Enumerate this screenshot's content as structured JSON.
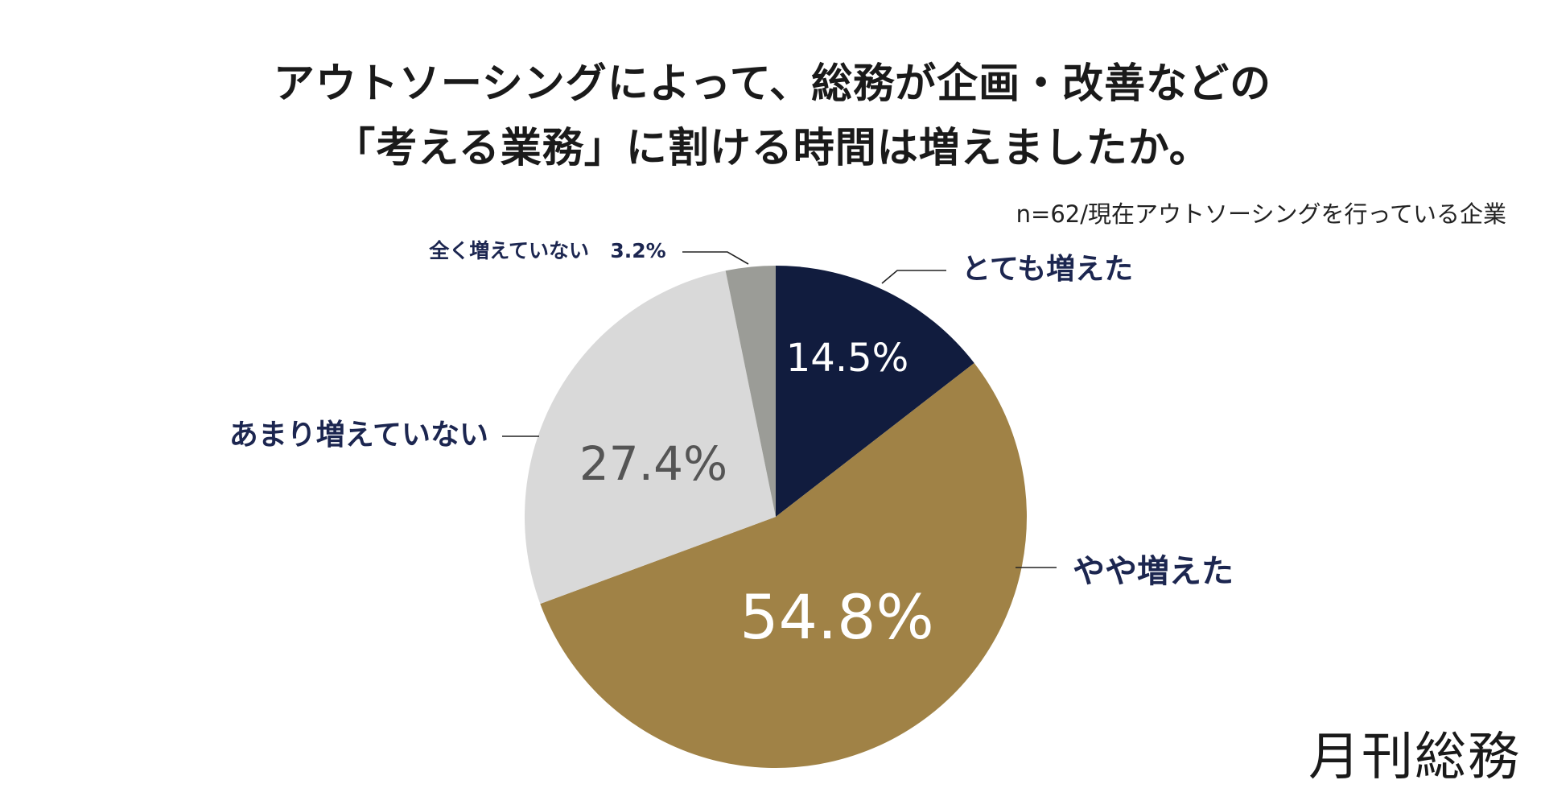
{
  "title": {
    "line1": "アウトソーシングによって、総務が企画・改善などの",
    "line2": "「考える業務」に割ける時間は増えましたか。"
  },
  "note": "n=62/現在アウトソーシングを行っている企業",
  "brand": "月刊総務",
  "colors": {
    "navy": "#111c3e",
    "gold": "#a08246",
    "light_gray": "#d9d9d9",
    "mid_gray": "#9b9c97",
    "label_navy": "#1c2650",
    "dark_value": "#555555",
    "white": "#ffffff"
  },
  "chart_data": {
    "type": "pie",
    "start": "12 o'clock",
    "direction": "clockwise",
    "slices": [
      {
        "label": "とても増えた",
        "value": 14.5,
        "display": "14.5%",
        "color": "#111c3e",
        "value_color": "#ffffff"
      },
      {
        "label": "やや増えた",
        "value": 54.8,
        "display": "54.8%",
        "color": "#a08246",
        "value_color": "#ffffff"
      },
      {
        "label": "あまり増えていない",
        "value": 27.4,
        "display": "27.4%",
        "color": "#d9d9d9",
        "value_color": "#555555"
      },
      {
        "label": "全く増えていない",
        "value": 3.2,
        "display": "3.2%",
        "color": "#9b9c97",
        "value_color": "#1c2650"
      }
    ]
  }
}
